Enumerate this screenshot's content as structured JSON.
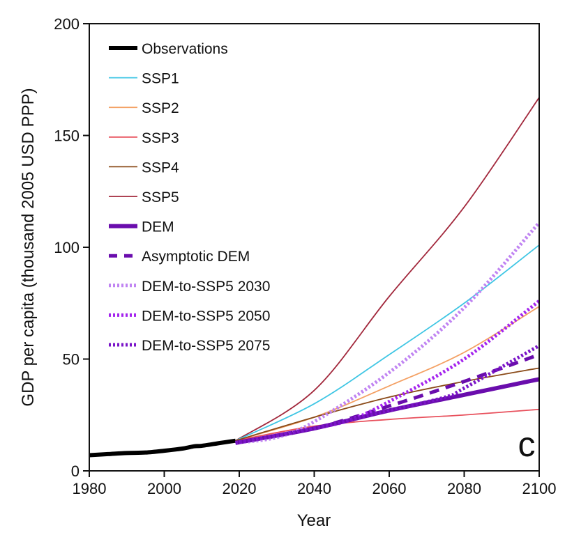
{
  "chart_data": {
    "type": "line",
    "panel_label": "c",
    "xlabel": "Year",
    "ylabel": "GDP per capita (thousand 2005 USD PPP)",
    "xlim": [
      1980,
      2100
    ],
    "ylim": [
      0,
      200
    ],
    "xticks": [
      "1980",
      "2000",
      "2020",
      "2040",
      "2060",
      "2080",
      "2100"
    ],
    "yticks": [
      "0",
      "50",
      "100",
      "150",
      "200"
    ],
    "grid": false,
    "legend_placement": "top-left",
    "series": [
      {
        "name": "Observations",
        "color": "#000000",
        "style": "solid",
        "weight": "thick",
        "x": [
          1980,
          1985,
          1990,
          1995,
          2000,
          2005,
          2008,
          2010,
          2015,
          2019
        ],
        "y": [
          7,
          7.5,
          8,
          8.2,
          9,
          10,
          11,
          11.2,
          12.5,
          13.5
        ]
      },
      {
        "name": "SSP1",
        "color": "#3fc6e4",
        "style": "solid",
        "weight": "thin",
        "x": [
          2019,
          2040,
          2060,
          2080,
          2100
        ],
        "y": [
          13.5,
          30,
          52,
          75,
          101
        ]
      },
      {
        "name": "SSP2",
        "color": "#f4a063",
        "style": "solid",
        "weight": "thin",
        "x": [
          2019,
          2040,
          2060,
          2080,
          2100
        ],
        "y": [
          13.5,
          24,
          38,
          53,
          73.5
        ]
      },
      {
        "name": "SSP3",
        "color": "#e8505c",
        "style": "solid",
        "weight": "thin",
        "x": [
          2019,
          2040,
          2060,
          2080,
          2100
        ],
        "y": [
          13.5,
          20,
          23,
          25,
          27.5
        ]
      },
      {
        "name": "SSP4",
        "color": "#8a4a18",
        "style": "solid",
        "weight": "thin",
        "x": [
          2019,
          2040,
          2060,
          2080,
          2100
        ],
        "y": [
          13.5,
          24,
          33,
          40,
          46
        ]
      },
      {
        "name": "SSP5",
        "color": "#a2283c",
        "style": "solid",
        "weight": "thin",
        "x": [
          2019,
          2040,
          2060,
          2080,
          2100
        ],
        "y": [
          13.5,
          36,
          78,
          118,
          167
        ]
      },
      {
        "name": "DEM",
        "color": "#6a0dad",
        "style": "solid",
        "weight": "thick",
        "x": [
          2019,
          2040,
          2060,
          2080,
          2100
        ],
        "y": [
          12.5,
          19,
          27,
          34,
          41
        ]
      },
      {
        "name": "Asymptotic DEM",
        "color": "#6a0dad",
        "style": "dashed",
        "weight": "thick",
        "x": [
          2019,
          2040,
          2060,
          2080,
          2100
        ],
        "y": [
          12.5,
          19,
          29,
          40,
          52
        ]
      },
      {
        "name": "DEM-to-SSP5 2030",
        "color": "#c084f2",
        "style": "dotted",
        "weight": "thick",
        "x": [
          2019,
          2030,
          2040,
          2060,
          2080,
          2100
        ],
        "y": [
          12.5,
          15,
          22,
          44,
          73,
          111
        ]
      },
      {
        "name": "DEM-to-SSP5 2050",
        "color": "#a424ee",
        "style": "dotted",
        "weight": "thick",
        "x": [
          2019,
          2040,
          2050,
          2060,
          2080,
          2100
        ],
        "y": [
          12.5,
          19,
          23,
          31,
          50,
          76
        ]
      },
      {
        "name": "DEM-to-SSP5 2075",
        "color": "#7a14c8",
        "style": "dotted",
        "weight": "thick",
        "x": [
          2019,
          2040,
          2060,
          2075,
          2080,
          2100
        ],
        "y": [
          12.5,
          19,
          27,
          33,
          37,
          56
        ]
      }
    ]
  }
}
